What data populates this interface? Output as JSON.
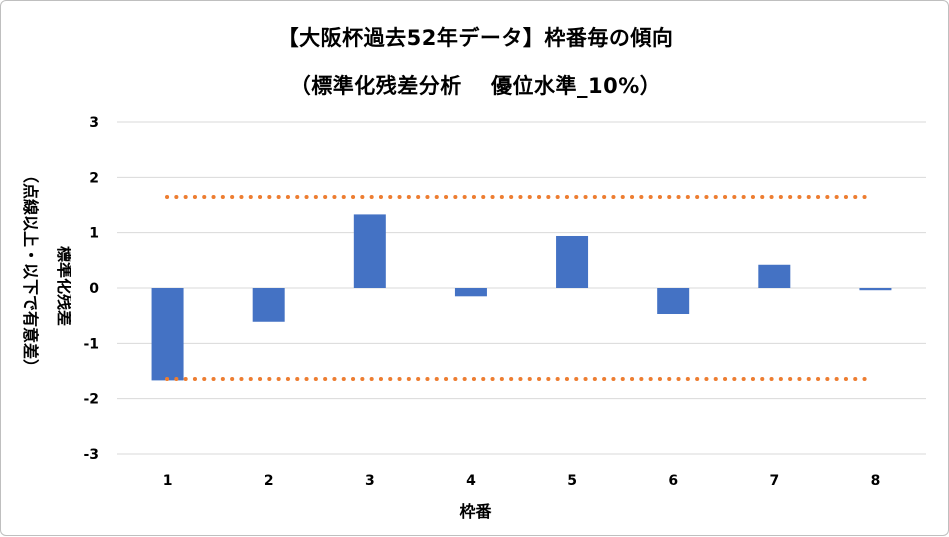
{
  "chart_data": {
    "type": "bar",
    "title": "【大阪杯過去52年データ】枠番毎の傾向",
    "subtitle": "（標準化残差分析　 優位水準_10%）",
    "xlabel": "枠番",
    "ylabel": "標準化残差",
    "ylabel_note": "（点線以上・以下で有意差）",
    "categories": [
      "1",
      "2",
      "3",
      "4",
      "5",
      "6",
      "7",
      "8"
    ],
    "values": [
      -1.67,
      -0.61,
      1.33,
      -0.15,
      0.94,
      -0.47,
      0.42,
      -0.04
    ],
    "ylim": [
      -3,
      3
    ],
    "yticks": [
      "3",
      "2",
      "1",
      "0",
      "-1",
      "-2",
      "-3"
    ],
    "grid": true,
    "threshold_lines": [
      1.645,
      -1.645
    ],
    "colors": {
      "bar": "#4472c4",
      "threshold": "#ed7d31",
      "grid": "#d9d9d9"
    }
  }
}
